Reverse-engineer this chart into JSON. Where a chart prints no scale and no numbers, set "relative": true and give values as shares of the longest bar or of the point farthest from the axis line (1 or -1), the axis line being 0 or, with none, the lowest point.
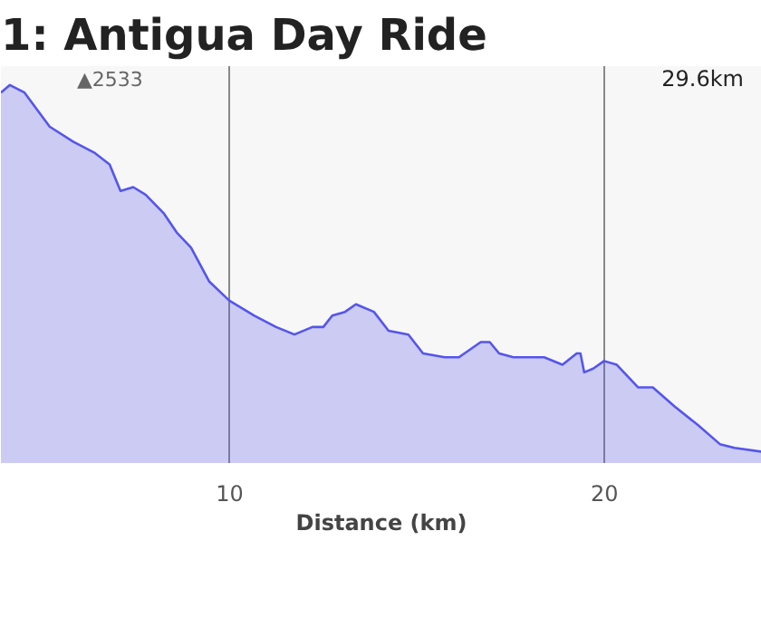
{
  "chart_data": {
    "type": "area",
    "title": "1: Antigua Day Ride",
    "subtitle": "29.6km",
    "xlabel": "Distance (km)",
    "annotations": [
      "▲2533"
    ],
    "relative": true,
    "color": "#5555ee",
    "grid": "x",
    "x": [
      3.9,
      4.14,
      4.53,
      5.2,
      5.83,
      6.41,
      6.8,
      7.09,
      7.43,
      7.76,
      8.25,
      8.59,
      8.97,
      9.46,
      9.99,
      10.66,
      11.24,
      11.73,
      12.21,
      12.5,
      12.74,
      13.08,
      13.37,
      13.85,
      14.24,
      14.77,
      15.16,
      15.74,
      16.12,
      16.7,
      16.94,
      17.19,
      17.57,
      18.39,
      18.88,
      19.26,
      19.36,
      19.46,
      19.7,
      19.99,
      20.33,
      20.9,
      21.29,
      21.87,
      22.5,
      23.08,
      23.47,
      24.19
    ],
    "values": [
      0.98,
      1.0,
      0.98,
      0.89,
      0.85,
      0.82,
      0.79,
      0.72,
      0.73,
      0.71,
      0.66,
      0.61,
      0.57,
      0.48,
      0.43,
      0.39,
      0.36,
      0.34,
      0.36,
      0.36,
      0.39,
      0.4,
      0.42,
      0.4,
      0.35,
      0.34,
      0.29,
      0.28,
      0.28,
      0.32,
      0.32,
      0.29,
      0.28,
      0.28,
      0.26,
      0.29,
      0.29,
      0.24,
      0.25,
      0.27,
      0.26,
      0.2,
      0.2,
      0.15,
      0.1,
      0.05,
      0.04,
      0.03
    ],
    "xlim": [
      3.9,
      24.2
    ],
    "xticks": [
      10,
      20
    ],
    "tick_labels": "x"
  }
}
